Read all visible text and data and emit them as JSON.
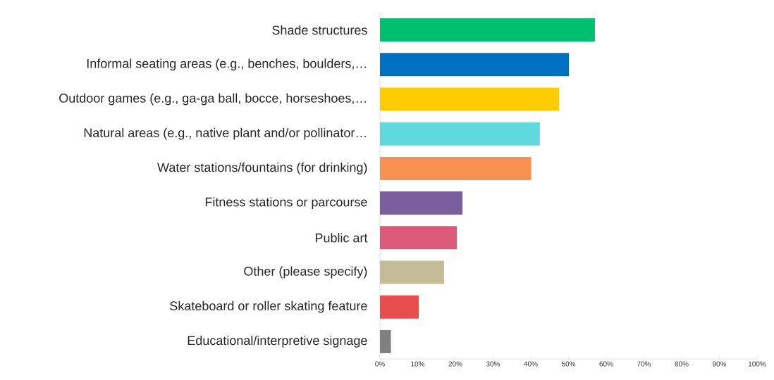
{
  "chart_data": {
    "type": "bar",
    "orientation": "horizontal",
    "categories": [
      "Shade structures",
      "Informal seating areas (e.g., benches, boulders,…",
      "Outdoor games (e.g., ga-ga ball, bocce, horseshoes,…",
      "Natural areas (e.g., native plant and/or pollinator…",
      "Water stations/fountains (for drinking)",
      "Fitness stations or parcourse",
      "Public art",
      "Other (please specify)",
      "Skateboard or roller skating feature",
      "Educational/interpretive signage"
    ],
    "values": [
      57.0,
      50.1,
      47.5,
      42.4,
      40.1,
      21.9,
      20.4,
      17.0,
      10.3,
      2.9
    ],
    "colors": [
      "#00bf6f",
      "#0070c0",
      "#ffcc00",
      "#5fd9de",
      "#f79151",
      "#7b5e9e",
      "#dc5a78",
      "#c4bc96",
      "#e84d4d",
      "#808080"
    ],
    "xlim": [
      0,
      100
    ],
    "xticks": [
      {
        "value": 0,
        "label": "0%"
      },
      {
        "value": 10,
        "label": "10%"
      },
      {
        "value": 20,
        "label": "20%"
      },
      {
        "value": 30,
        "label": "30%"
      },
      {
        "value": 40,
        "label": "40%"
      },
      {
        "value": 50,
        "label": "50%"
      },
      {
        "value": 60,
        "label": "60%"
      },
      {
        "value": 70,
        "label": "70%"
      },
      {
        "value": 80,
        "label": "80%"
      },
      {
        "value": 90,
        "label": "90%"
      },
      {
        "value": 100,
        "label": "100%"
      }
    ]
  }
}
